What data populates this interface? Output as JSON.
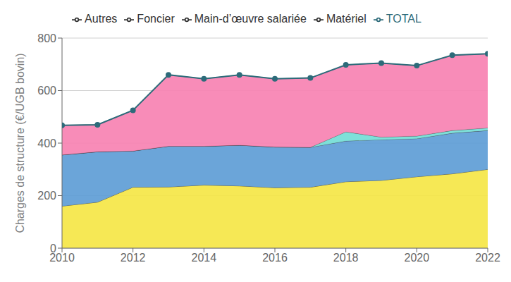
{
  "chart_data": {
    "type": "area",
    "stacked": true,
    "ylabel": "Charges de structure (€/UGB bovin)",
    "x": [
      2010,
      2011,
      2012,
      2013,
      2014,
      2015,
      2016,
      2017,
      2018,
      2019,
      2020,
      2021,
      2022
    ],
    "xlim": [
      2010,
      2022
    ],
    "xticks": [
      2010,
      2012,
      2014,
      2016,
      2018,
      2020,
      2022
    ],
    "ylim": [
      0,
      800
    ],
    "yticks": [
      0,
      200,
      400,
      600,
      800
    ],
    "grid": true,
    "legend": "top",
    "series": [
      {
        "name": "Matériel",
        "type": "area",
        "color": "#f5e642",
        "values": [
          160,
          175,
          232,
          233,
          240,
          237,
          230,
          232,
          253,
          258,
          272,
          283,
          300
        ]
      },
      {
        "name": "Foncier",
        "type": "area",
        "color": "#5b9bd5",
        "values": [
          195,
          192,
          138,
          155,
          148,
          155,
          155,
          152,
          155,
          155,
          145,
          155,
          148
        ]
      },
      {
        "name": "Main-d’œuvre salariée",
        "type": "area",
        "color": "#70ddd5",
        "values": [
          0,
          0,
          0,
          0,
          0,
          0,
          0,
          0,
          35,
          10,
          10,
          10,
          10
        ]
      },
      {
        "name": "Autres",
        "type": "area",
        "color": "#f77fb0",
        "values": [
          113,
          103,
          155,
          272,
          257,
          268,
          260,
          264,
          255,
          282,
          268,
          287,
          282
        ]
      },
      {
        "name": "TOTAL",
        "type": "line",
        "color": "#2d6b7a",
        "marker": "circle",
        "values": [
          468,
          470,
          525,
          660,
          645,
          660,
          645,
          648,
          698,
          705,
          695,
          735,
          740
        ]
      }
    ]
  }
}
